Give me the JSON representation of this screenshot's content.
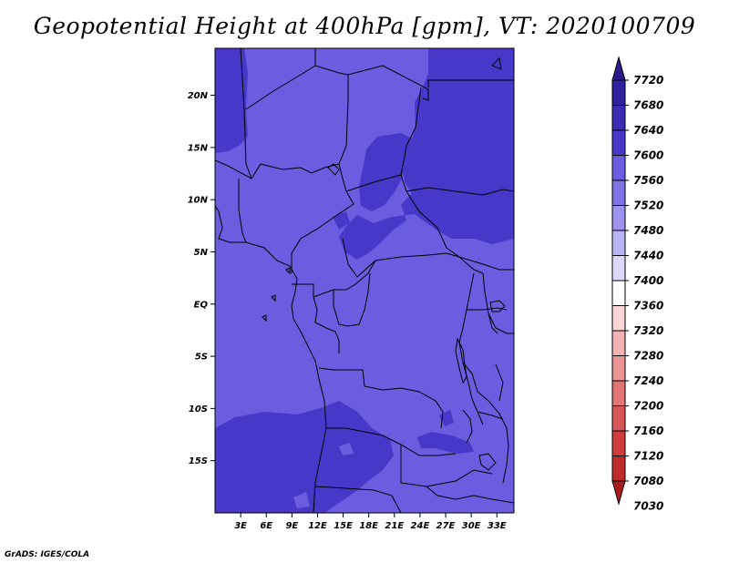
{
  "title": "Geopotential Height at 400hPa [gpm], VT: 2020100709",
  "credit": "GrADS: IGES/COLA",
  "colors": {
    "level_7560": "#6b5ce0",
    "level_7600": "#4838c9",
    "level_7640": "#3a2db4",
    "boundary": "#000000"
  },
  "map": {
    "lon_range": [
      0,
      35
    ],
    "lat_range": [
      -20,
      24.5
    ],
    "lat_ticks": [
      {
        "value": 20,
        "label": "20N"
      },
      {
        "value": 15,
        "label": "15N"
      },
      {
        "value": 10,
        "label": "10N"
      },
      {
        "value": 5,
        "label": "5N"
      },
      {
        "value": 0,
        "label": "EQ"
      },
      {
        "value": -5,
        "label": "5S"
      },
      {
        "value": -10,
        "label": "10S"
      },
      {
        "value": -15,
        "label": "15S"
      }
    ],
    "lon_ticks": [
      {
        "value": 3,
        "label": "3E"
      },
      {
        "value": 6,
        "label": "6E"
      },
      {
        "value": 9,
        "label": "9E"
      },
      {
        "value": 12,
        "label": "12E"
      },
      {
        "value": 15,
        "label": "15E"
      },
      {
        "value": 18,
        "label": "18E"
      },
      {
        "value": 21,
        "label": "21E"
      },
      {
        "value": 24,
        "label": "24E"
      },
      {
        "value": 27,
        "label": "27E"
      },
      {
        "value": 30,
        "label": "30E"
      },
      {
        "value": 33,
        "label": "33E"
      }
    ]
  },
  "colorbar": {
    "levels": [
      {
        "label": "7720",
        "color": "#2a1a8c"
      },
      {
        "label": "7680",
        "color": "#2f22a0"
      },
      {
        "label": "7640",
        "color": "#3a2db4"
      },
      {
        "label": "7600",
        "color": "#4838c9"
      },
      {
        "label": "7560",
        "color": "#6b5ce0"
      },
      {
        "label": "7520",
        "color": "#8173e6"
      },
      {
        "label": "7480",
        "color": "#9d92ee"
      },
      {
        "label": "7440",
        "color": "#bab3f4"
      },
      {
        "label": "7400",
        "color": "#dcd8fa"
      },
      {
        "label": "7360",
        "color": "#ffffff"
      },
      {
        "label": "7320",
        "color": "#fbd6d6"
      },
      {
        "label": "7280",
        "color": "#f3b3b3"
      },
      {
        "label": "7240",
        "color": "#ea9494"
      },
      {
        "label": "7200",
        "color": "#e17474"
      },
      {
        "label": "7160",
        "color": "#d85656"
      },
      {
        "label": "7120",
        "color": "#ce3c3c"
      },
      {
        "label": "7080",
        "color": "#bf2a2a"
      },
      {
        "label": "7030",
        "color": "#a81e1e"
      }
    ]
  }
}
